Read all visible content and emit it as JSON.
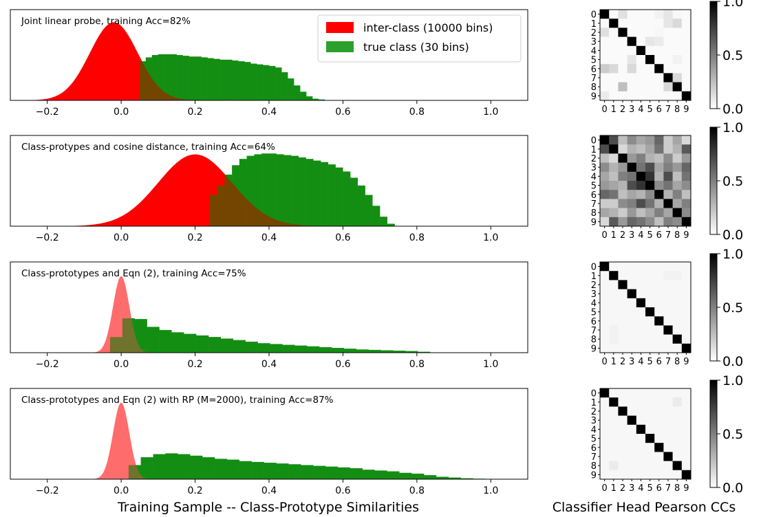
{
  "figure": {
    "xlabel": "Training Sample -- Class-Prototype Similarities",
    "matrix_xlabel": "Classifier Head Pearson CCs"
  },
  "colors": {
    "inter": "#ff0000",
    "true": "#008000",
    "inter_light": "#ff6464"
  },
  "legend": {
    "entries": [
      "inter-class (10000 bins)",
      "true class (30 bins)"
    ],
    "placement": "upper-right",
    "panel": 0
  },
  "chart_data": [
    {
      "type": "histogram",
      "title": "Joint linear probe, training Acc=82%",
      "xlim": [
        -0.3,
        1.1
      ],
      "xticks": [
        -0.2,
        0.0,
        0.2,
        0.4,
        0.6,
        0.8,
        1.0
      ],
      "xtick_labels": [
        "−0.2",
        "0.0",
        "0.2",
        "0.4",
        "0.6",
        "0.8",
        "1.0"
      ],
      "series": [
        {
          "name": "inter-class (10000 bins)",
          "kind": "gaussian",
          "mean": -0.02,
          "std": 0.065,
          "peak": 1.0
        },
        {
          "name": "true class (30 bins)",
          "kind": "bars",
          "start": 0.05,
          "width": 0.0167,
          "heights": [
            0.5,
            0.55,
            0.58,
            0.59,
            0.59,
            0.59,
            0.58,
            0.57,
            0.56,
            0.56,
            0.55,
            0.54,
            0.53,
            0.52,
            0.52,
            0.51,
            0.5,
            0.49,
            0.47,
            0.46,
            0.45,
            0.44,
            0.42,
            0.36,
            0.28,
            0.19,
            0.11,
            0.05,
            0.02,
            0.01
          ]
        }
      ],
      "matrix": {
        "size": 10,
        "tick_labels": [
          "0",
          "1",
          "2",
          "3",
          "4",
          "5",
          "6",
          "7",
          "8",
          "9"
        ],
        "colorbar_ticks": [
          "0.0",
          "0.5",
          "1.0"
        ],
        "vmin": 0.0,
        "vmax": 1.0,
        "values": [
          [
            1.0,
            0.02,
            0.12,
            0.02,
            0.02,
            0.02,
            0.05,
            0.1,
            0.03,
            0.02
          ],
          [
            0.02,
            1.0,
            0.02,
            0.02,
            0.02,
            0.02,
            0.02,
            0.1,
            0.15,
            0.02
          ],
          [
            0.12,
            0.02,
            1.0,
            0.02,
            0.02,
            0.02,
            0.03,
            0.02,
            0.02,
            0.02
          ],
          [
            0.02,
            0.02,
            0.02,
            1.0,
            0.02,
            0.1,
            0.08,
            0.02,
            0.02,
            0.02
          ],
          [
            0.02,
            0.02,
            0.02,
            0.02,
            1.0,
            0.02,
            0.02,
            0.02,
            0.02,
            0.02
          ],
          [
            0.02,
            0.02,
            0.02,
            0.1,
            0.02,
            1.0,
            0.02,
            0.02,
            0.05,
            0.02
          ],
          [
            0.2,
            0.15,
            0.02,
            0.15,
            0.02,
            0.02,
            1.0,
            0.02,
            0.02,
            0.02
          ],
          [
            0.02,
            0.02,
            0.02,
            0.02,
            0.02,
            0.02,
            0.02,
            1.0,
            0.15,
            0.02
          ],
          [
            0.02,
            0.02,
            0.25,
            0.02,
            0.02,
            0.02,
            0.02,
            0.15,
            1.0,
            0.02
          ],
          [
            0.08,
            0.02,
            0.02,
            0.02,
            0.02,
            0.02,
            0.02,
            0.02,
            0.02,
            1.0
          ]
        ]
      }
    },
    {
      "type": "histogram",
      "title": "Class-protypes and cosine distance, training Acc=64%",
      "xlim": [
        -0.3,
        1.1
      ],
      "xticks": [
        -0.2,
        0.0,
        0.2,
        0.4,
        0.6,
        0.8,
        1.0
      ],
      "xtick_labels": [
        "−0.2",
        "0.0",
        "0.2",
        "0.4",
        "0.6",
        "0.8",
        "1.0"
      ],
      "series": [
        {
          "name": "inter-class",
          "kind": "gaussian",
          "mean": 0.2,
          "std": 0.1,
          "peak": 0.92
        },
        {
          "name": "true class",
          "kind": "bars",
          "start": 0.24,
          "width": 0.02,
          "heights": [
            0.4,
            0.52,
            0.66,
            0.78,
            0.86,
            0.9,
            0.92,
            0.93,
            0.93,
            0.92,
            0.91,
            0.9,
            0.88,
            0.86,
            0.84,
            0.82,
            0.79,
            0.75,
            0.7,
            0.62,
            0.52,
            0.4,
            0.26,
            0.12,
            0.03
          ]
        }
      ],
      "matrix": {
        "size": 10,
        "tick_labels": [
          "0",
          "1",
          "2",
          "3",
          "4",
          "5",
          "6",
          "7",
          "8",
          "9"
        ],
        "colorbar_ticks": [
          "0.0",
          "0.5",
          "1.0"
        ],
        "vmin": 0.0,
        "vmax": 1.0,
        "values": [
          [
            1.0,
            0.7,
            0.25,
            0.45,
            0.35,
            0.4,
            0.6,
            0.2,
            0.35,
            0.15
          ],
          [
            0.7,
            1.0,
            0.15,
            0.3,
            0.25,
            0.35,
            0.55,
            0.2,
            0.3,
            0.65
          ],
          [
            0.25,
            0.15,
            1.0,
            0.4,
            0.5,
            0.3,
            0.25,
            0.45,
            0.2,
            0.4
          ],
          [
            0.45,
            0.3,
            0.4,
            1.0,
            0.55,
            0.7,
            0.35,
            0.5,
            0.4,
            0.6
          ],
          [
            0.35,
            0.25,
            0.5,
            0.55,
            1.0,
            0.8,
            0.3,
            0.7,
            0.25,
            0.55
          ],
          [
            0.4,
            0.35,
            0.3,
            0.7,
            0.8,
            1.0,
            0.45,
            0.55,
            0.35,
            0.45
          ],
          [
            0.6,
            0.55,
            0.25,
            0.35,
            0.3,
            0.45,
            1.0,
            0.3,
            0.5,
            0.25
          ],
          [
            0.2,
            0.2,
            0.45,
            0.5,
            0.7,
            0.55,
            0.3,
            1.0,
            0.35,
            0.5
          ],
          [
            0.35,
            0.3,
            0.2,
            0.4,
            0.25,
            0.35,
            0.5,
            0.35,
            1.0,
            0.45
          ],
          [
            0.15,
            0.65,
            0.4,
            0.6,
            0.55,
            0.45,
            0.25,
            0.5,
            0.45,
            1.0
          ]
        ]
      }
    },
    {
      "type": "histogram",
      "title": "Class-prototypes and Eqn (2), training Acc=75%",
      "xlim": [
        -0.3,
        1.1
      ],
      "xticks": [
        -0.2,
        0.0,
        0.2,
        0.4,
        0.6,
        0.8,
        1.0
      ],
      "xtick_labels": [
        "−0.2",
        "0.0",
        "0.2",
        "0.4",
        "0.6",
        "0.8",
        "1.0"
      ],
      "series": [
        {
          "name": "inter-class",
          "kind": "gaussian",
          "mean": 0.0,
          "std": 0.022,
          "peak": 0.98
        },
        {
          "name": "true class",
          "kind": "bars",
          "start": -0.03,
          "width": 0.0333,
          "heights": [
            0.2,
            0.44,
            0.43,
            0.33,
            0.29,
            0.26,
            0.24,
            0.22,
            0.2,
            0.18,
            0.16,
            0.14,
            0.12,
            0.11,
            0.1,
            0.09,
            0.08,
            0.07,
            0.06,
            0.05,
            0.04,
            0.035,
            0.03,
            0.025,
            0.02,
            0.01
          ]
        }
      ],
      "matrix": {
        "size": 10,
        "tick_labels": [
          "0",
          "1",
          "2",
          "3",
          "4",
          "5",
          "6",
          "7",
          "8",
          "9"
        ],
        "colorbar_ticks": [
          "0.0",
          "0.5",
          "1.0"
        ],
        "vmin": 0.0,
        "vmax": 1.0,
        "values": [
          [
            1.0,
            0.03,
            0.03,
            0.03,
            0.03,
            0.03,
            0.03,
            0.03,
            0.03,
            0.03
          ],
          [
            0.03,
            1.0,
            0.03,
            0.03,
            0.03,
            0.03,
            0.03,
            0.05,
            0.05,
            0.03
          ],
          [
            0.03,
            0.03,
            1.0,
            0.03,
            0.03,
            0.03,
            0.03,
            0.03,
            0.03,
            0.03
          ],
          [
            0.03,
            0.03,
            0.03,
            1.0,
            0.03,
            0.03,
            0.03,
            0.03,
            0.03,
            0.03
          ],
          [
            0.03,
            0.03,
            0.03,
            0.03,
            1.0,
            0.03,
            0.03,
            0.03,
            0.03,
            0.03
          ],
          [
            0.03,
            0.03,
            0.03,
            0.03,
            0.03,
            1.0,
            0.03,
            0.03,
            0.03,
            0.03
          ],
          [
            0.03,
            0.03,
            0.03,
            0.03,
            0.03,
            0.03,
            1.0,
            0.03,
            0.03,
            0.03
          ],
          [
            0.03,
            0.05,
            0.03,
            0.03,
            0.03,
            0.03,
            0.03,
            1.0,
            0.03,
            0.03
          ],
          [
            0.03,
            0.05,
            0.03,
            0.03,
            0.03,
            0.03,
            0.03,
            0.03,
            1.0,
            0.03
          ],
          [
            0.03,
            0.03,
            0.03,
            0.03,
            0.03,
            0.03,
            0.03,
            0.03,
            0.03,
            1.0
          ]
        ]
      }
    },
    {
      "type": "histogram",
      "title": "Class-prototypes and Eqn (2) with RP (M=2000), training Acc=87%",
      "xlim": [
        -0.3,
        1.1
      ],
      "xticks": [
        -0.2,
        0.0,
        0.2,
        0.4,
        0.6,
        0.8,
        1.0
      ],
      "xtick_labels": [
        "−0.2",
        "0.0",
        "0.2",
        "0.4",
        "0.6",
        "0.8",
        "1.0"
      ],
      "series": [
        {
          "name": "inter-class",
          "kind": "gaussian",
          "mean": 0.0,
          "std": 0.022,
          "peak": 0.98
        },
        {
          "name": "true class",
          "kind": "bars",
          "start": 0.02,
          "width": 0.0333,
          "heights": [
            0.18,
            0.28,
            0.32,
            0.33,
            0.32,
            0.3,
            0.28,
            0.26,
            0.25,
            0.23,
            0.22,
            0.21,
            0.2,
            0.19,
            0.18,
            0.17,
            0.16,
            0.15,
            0.14,
            0.12,
            0.11,
            0.1,
            0.08,
            0.07,
            0.05,
            0.03,
            0.02,
            0.01,
            0.005
          ]
        }
      ],
      "matrix": {
        "size": 10,
        "tick_labels": [
          "0",
          "1",
          "2",
          "3",
          "4",
          "5",
          "6",
          "7",
          "8",
          "9"
        ],
        "colorbar_ticks": [
          "0.0",
          "0.5",
          "1.0"
        ],
        "vmin": 0.0,
        "vmax": 1.0,
        "values": [
          [
            1.0,
            0.03,
            0.03,
            0.03,
            0.03,
            0.03,
            0.03,
            0.03,
            0.03,
            0.03
          ],
          [
            0.03,
            1.0,
            0.03,
            0.03,
            0.03,
            0.03,
            0.03,
            0.03,
            0.08,
            0.03
          ],
          [
            0.03,
            0.03,
            1.0,
            0.03,
            0.03,
            0.03,
            0.03,
            0.03,
            0.03,
            0.03
          ],
          [
            0.03,
            0.03,
            0.03,
            1.0,
            0.03,
            0.03,
            0.03,
            0.03,
            0.03,
            0.03
          ],
          [
            0.03,
            0.03,
            0.03,
            0.03,
            1.0,
            0.03,
            0.03,
            0.03,
            0.03,
            0.03
          ],
          [
            0.03,
            0.03,
            0.03,
            0.03,
            0.03,
            1.0,
            0.03,
            0.03,
            0.03,
            0.03
          ],
          [
            0.03,
            0.03,
            0.03,
            0.03,
            0.03,
            0.03,
            1.0,
            0.03,
            0.03,
            0.03
          ],
          [
            0.03,
            0.03,
            0.03,
            0.03,
            0.03,
            0.03,
            0.03,
            1.0,
            0.03,
            0.03
          ],
          [
            0.03,
            0.08,
            0.03,
            0.03,
            0.03,
            0.03,
            0.03,
            0.03,
            1.0,
            0.03
          ],
          [
            0.03,
            0.03,
            0.03,
            0.03,
            0.03,
            0.03,
            0.03,
            0.03,
            0.03,
            1.0
          ]
        ]
      }
    }
  ]
}
